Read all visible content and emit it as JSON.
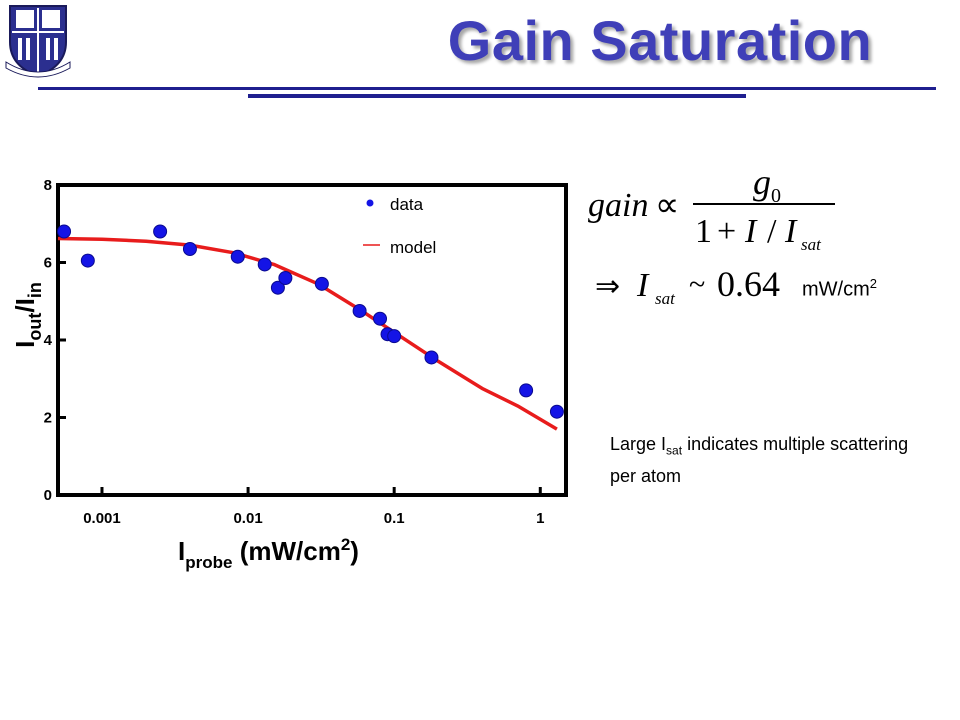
{
  "slide": {
    "title": "Gain Saturation",
    "note_prefix": "Large I",
    "note_sub": "sat",
    "note_suffix": " indicates multiple scattering per atom",
    "formula_units": "mW/cm",
    "formula_units_sup": "2",
    "colors": {
      "title": "#3f3fb8",
      "rule": "#1f1f8f",
      "data": "#1414e6",
      "model": "#e81c1c"
    }
  },
  "formula": {
    "gain": "gain",
    "proportional": "∝",
    "numerator": "g",
    "numerator_sub": "0",
    "denominator_one": "1",
    "plus": "+",
    "I": "I",
    "slash": "/",
    "I_sat": "I",
    "sat": "sat",
    "implies": "⇒",
    "I2": "I",
    "sat2": "sat",
    "approx": "~",
    "value": "0.64"
  },
  "chart_data": {
    "type": "scatter",
    "xscale": "log",
    "xlim": [
      0.0005,
      1.5
    ],
    "ylim": [
      0,
      8
    ],
    "xticks": [
      0.001,
      0.01,
      0.1,
      1
    ],
    "xtick_labels": [
      "0.001",
      "0.01",
      "0.1",
      "1"
    ],
    "yticks": [
      0,
      2,
      4,
      6,
      8
    ],
    "ytick_labels": [
      "0",
      "2",
      "4",
      "6",
      "8"
    ],
    "ylabel": {
      "main": "I",
      "sub1": "out",
      "mid": "/I",
      "sub2": "in"
    },
    "xlabel": {
      "main": "I",
      "sub": "probe",
      "tail": " (mW/cm",
      "sup": "2",
      "end": ")"
    },
    "legend": [
      {
        "name": "data",
        "marker": "circle",
        "color": "#1414e6"
      },
      {
        "name": "model",
        "marker": "line",
        "color": "#e81c1c"
      }
    ],
    "legend_placement": "top-center",
    "grid": false,
    "series": [
      {
        "name": "data",
        "points": [
          [
            0.00055,
            6.8
          ],
          [
            0.0008,
            6.05
          ],
          [
            0.0025,
            6.8
          ],
          [
            0.004,
            6.35
          ],
          [
            0.0085,
            6.15
          ],
          [
            0.013,
            5.95
          ],
          [
            0.016,
            5.35
          ],
          [
            0.018,
            5.6
          ],
          [
            0.032,
            5.45
          ],
          [
            0.058,
            4.75
          ],
          [
            0.08,
            4.55
          ],
          [
            0.09,
            4.15
          ],
          [
            0.1,
            4.1
          ],
          [
            0.18,
            3.55
          ],
          [
            0.8,
            2.7
          ],
          [
            1.3,
            2.15
          ]
        ]
      },
      {
        "name": "model",
        "points": [
          [
            0.0005,
            6.62
          ],
          [
            0.001,
            6.6
          ],
          [
            0.002,
            6.55
          ],
          [
            0.004,
            6.45
          ],
          [
            0.008,
            6.25
          ],
          [
            0.015,
            5.95
          ],
          [
            0.03,
            5.45
          ],
          [
            0.06,
            4.75
          ],
          [
            0.1,
            4.2
          ],
          [
            0.2,
            3.45
          ],
          [
            0.4,
            2.75
          ],
          [
            0.7,
            2.3
          ],
          [
            1.3,
            1.7
          ]
        ]
      }
    ]
  }
}
